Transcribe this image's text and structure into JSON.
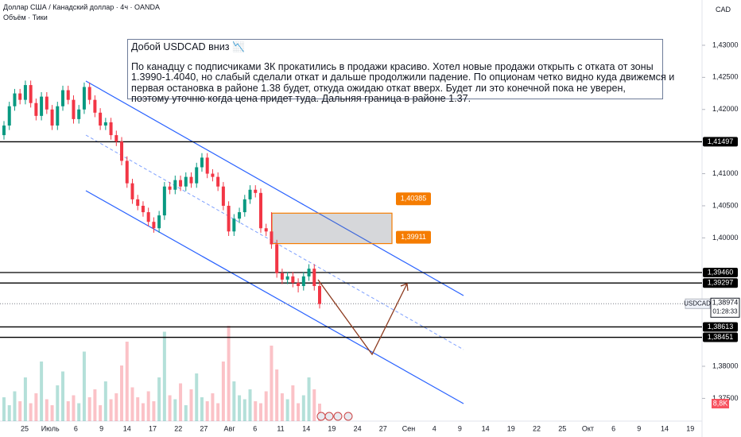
{
  "chart_data": {
    "type": "candlestick",
    "title": "Доллар США / Канадский доллар · 4ч · OANDA",
    "subtitle": "Объём · Тики",
    "currency": "CAD",
    "note_title": "Добой USDCAD вниз 📉",
    "note_lines": [
      "По канадцу с подписчиками 3К прокатились в продажи красиво. Хотел новые продажи открыть с отката от зоны",
      "1.3990-1.4040, но слабый сделали откат и дальше продолжили падение. По опционам четко видно куда движемся и",
      "первая остановка в районе 1.38 будет, откуда ожидаю откат вверх. Будет ли это конечной пока не уверен,",
      "поэтому уточню когда цена придет туда. Дальняя граница в районе 1.37."
    ],
    "x_labels": [
      "25",
      "Июль",
      "6",
      "9",
      "14",
      "17",
      "22",
      "27",
      "Авг",
      "6",
      "11",
      "14",
      "19",
      "24",
      "27",
      "Сен",
      "4",
      "9",
      "14",
      "19",
      "22",
      "25",
      "Окт",
      "6",
      "9",
      "14",
      "19"
    ],
    "ylim": [
      1.37146,
      1.43705
    ],
    "yticks": [
      {
        "value": 1.43,
        "label": "1,43000"
      },
      {
        "value": 1.425,
        "label": "1,42500"
      },
      {
        "value": 1.42,
        "label": "1,42000"
      },
      {
        "value": 1.41,
        "label": "1,41000"
      },
      {
        "value": 1.405,
        "label": "1,40500"
      },
      {
        "value": 1.4,
        "label": "1,40000"
      },
      {
        "value": 1.38,
        "label": "1,38000"
      },
      {
        "value": 1.375,
        "label": "1,37500"
      }
    ],
    "up_color": "#089981",
    "down_color": "#f23645",
    "ohlc": [
      [
        1.416,
        1.4182,
        1.4153,
        1.4175
      ],
      [
        1.4175,
        1.4212,
        1.4168,
        1.4205
      ],
      [
        1.4205,
        1.4232,
        1.4198,
        1.4225
      ],
      [
        1.4225,
        1.4232,
        1.4208,
        1.4215
      ],
      [
        1.4215,
        1.4245,
        1.4208,
        1.4238
      ],
      [
        1.4238,
        1.4245,
        1.4203,
        1.421
      ],
      [
        1.421,
        1.4217,
        1.4183,
        1.419
      ],
      [
        1.419,
        1.4227,
        1.4183,
        1.422
      ],
      [
        1.422,
        1.4227,
        1.4193,
        1.42
      ],
      [
        1.42,
        1.4207,
        1.4168,
        1.4175
      ],
      [
        1.4175,
        1.4212,
        1.4168,
        1.4205
      ],
      [
        1.4205,
        1.4237,
        1.4198,
        1.423
      ],
      [
        1.423,
        1.4237,
        1.4208,
        1.4215
      ],
      [
        1.4215,
        1.4222,
        1.4178,
        1.4185
      ],
      [
        1.4185,
        1.4207,
        1.4178,
        1.42
      ],
      [
        1.42,
        1.4242,
        1.4193,
        1.4235
      ],
      [
        1.4235,
        1.4242,
        1.4208,
        1.4215
      ],
      [
        1.4215,
        1.4222,
        1.4188,
        1.4195
      ],
      [
        1.4195,
        1.4202,
        1.4168,
        1.4175
      ],
      [
        1.4175,
        1.4187,
        1.4168,
        1.418
      ],
      [
        1.418,
        1.4187,
        1.4153,
        1.416
      ],
      [
        1.416,
        1.4167,
        1.4143,
        1.415
      ],
      [
        1.415,
        1.4157,
        1.4113,
        1.412
      ],
      [
        1.412,
        1.4127,
        1.4078,
        1.4085
      ],
      [
        1.4085,
        1.4092,
        1.4053,
        1.406
      ],
      [
        1.406,
        1.4067,
        1.4043,
        1.405
      ],
      [
        1.405,
        1.4057,
        1.4033,
        1.404
      ],
      [
        1.404,
        1.4047,
        1.4018,
        1.4025
      ],
      [
        1.4025,
        1.4032,
        1.4008,
        1.4015
      ],
      [
        1.4015,
        1.4042,
        1.4008,
        1.4035
      ],
      [
        1.4035,
        1.4087,
        1.4028,
        1.408
      ],
      [
        1.408,
        1.4087,
        1.4068,
        1.4075
      ],
      [
        1.4075,
        1.4097,
        1.4068,
        1.409
      ],
      [
        1.409,
        1.4097,
        1.4073,
        1.408
      ],
      [
        1.408,
        1.4102,
        1.4073,
        1.4095
      ],
      [
        1.4095,
        1.4102,
        1.4078,
        1.4085
      ],
      [
        1.4085,
        1.4117,
        1.4078,
        1.411
      ],
      [
        1.411,
        1.4132,
        1.4103,
        1.4125
      ],
      [
        1.4125,
        1.4132,
        1.4093,
        1.41
      ],
      [
        1.41,
        1.4107,
        1.4088,
        1.4095
      ],
      [
        1.4095,
        1.4102,
        1.4073,
        1.408
      ],
      [
        1.408,
        1.4087,
        1.4043,
        1.405
      ],
      [
        1.405,
        1.4057,
        1.4003,
        1.401
      ],
      [
        1.401,
        1.4037,
        1.4003,
        1.403
      ],
      [
        1.403,
        1.4047,
        1.4023,
        1.404
      ],
      [
        1.404,
        1.4067,
        1.4033,
        1.406
      ],
      [
        1.406,
        1.4082,
        1.4053,
        1.4075
      ],
      [
        1.4075,
        1.4082,
        1.4063,
        1.407
      ],
      [
        1.407,
        1.4077,
        1.4008,
        1.4015
      ],
      [
        1.4015,
        1.4022,
        1.4003,
        1.401
      ],
      [
        1.401,
        1.404,
        1.3983,
        1.399
      ],
      [
        1.399,
        1.3997,
        1.3938,
        1.3945
      ],
      [
        1.3945,
        1.3952,
        1.3928,
        1.3935
      ],
      [
        1.3935,
        1.3947,
        1.3928,
        1.394
      ],
      [
        1.394,
        1.3947,
        1.3923,
        1.393
      ],
      [
        1.393,
        1.3937,
        1.3915,
        1.3925
      ],
      [
        1.3925,
        1.3947,
        1.3918,
        1.394
      ],
      [
        1.394,
        1.3959,
        1.3933,
        1.3952
      ],
      [
        1.3952,
        1.3959,
        1.3918,
        1.3925
      ],
      [
        1.3925,
        1.3932,
        1.389,
        1.3897
      ]
    ],
    "volume": [
      12,
      8,
      15,
      10,
      22,
      9,
      14,
      30,
      11,
      8,
      18,
      25,
      10,
      13,
      9,
      35,
      12,
      16,
      8,
      20,
      11,
      14,
      28,
      40,
      17,
      12,
      9,
      15,
      10,
      22,
      45,
      13,
      11,
      19,
      8,
      16,
      24,
      12,
      10,
      14,
      9,
      30,
      48,
      20,
      13,
      11,
      16,
      10,
      9,
      15,
      38,
      26,
      14,
      11,
      18,
      9,
      13,
      22,
      16,
      8.8
    ],
    "volume_lim": [
      0,
      212
    ],
    "volume_last_label": "8,8K",
    "levels": [
      {
        "value": 1.41497,
        "label": "1,41497"
      },
      {
        "value": 1.3946,
        "label": "1,39460"
      },
      {
        "value": 1.39297,
        "label": "1,39297"
      },
      {
        "value": 1.38613,
        "label": "1,38613"
      },
      {
        "value": 1.38451,
        "label": "1,38451"
      }
    ],
    "zone": {
      "top": {
        "value": 1.40385,
        "label": "1,40385"
      },
      "bottom": {
        "value": 1.39911,
        "label": "1,39911"
      },
      "color": "#f57c00"
    },
    "last_price": {
      "value": 1.38974,
      "label": "1,38974"
    },
    "symbol": "USDCAD",
    "countdown": "01:28:33"
  }
}
